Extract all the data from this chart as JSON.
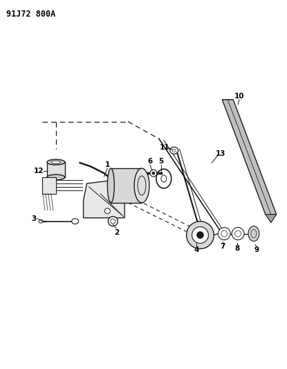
{
  "title": "91J72 800A",
  "bg_color": "#ffffff",
  "line_color": "#1a1a1a",
  "label_color": "#000000",
  "fig_width": 4.15,
  "fig_height": 5.33,
  "dpi": 100
}
